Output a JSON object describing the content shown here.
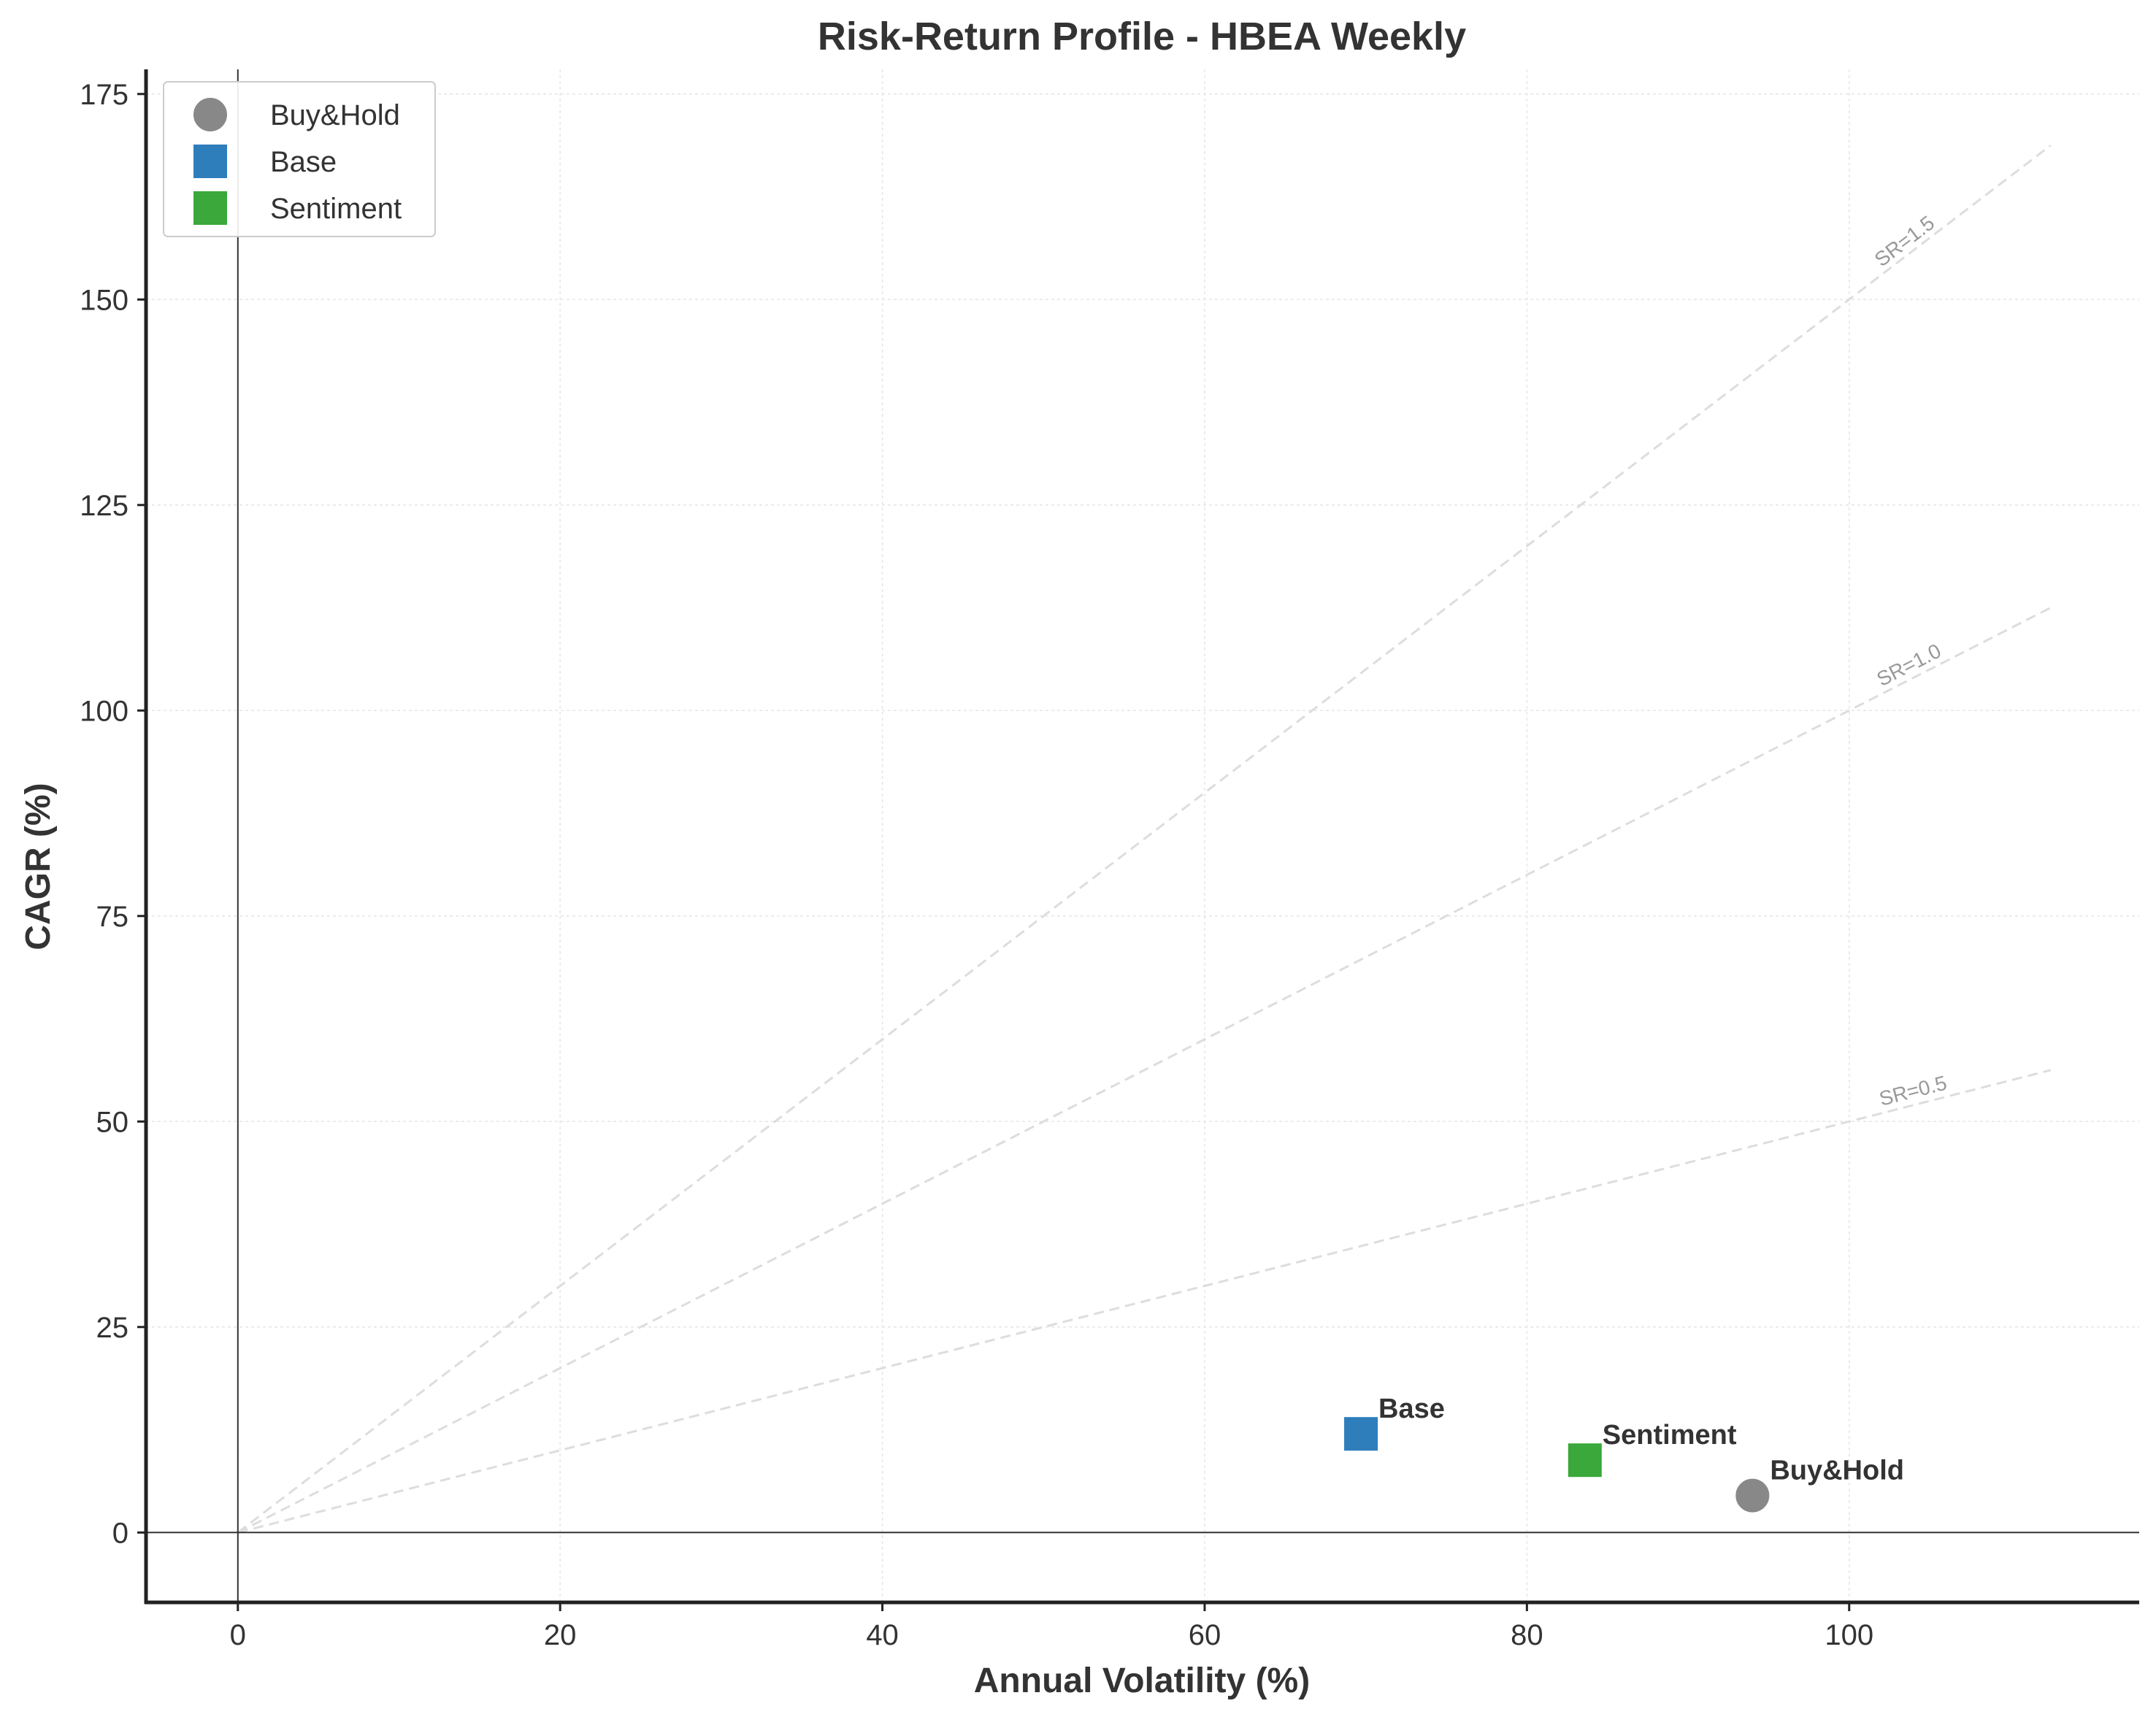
{
  "chart_data": {
    "type": "scatter",
    "title": "Risk-Return Profile - HBEA Weekly",
    "xlabel": "Annual Volatility (%)",
    "ylabel": "CAGR (%)",
    "xlim": [
      -5.7,
      118
    ],
    "ylim": [
      -8.5,
      178
    ],
    "xticks": [
      0,
      20,
      40,
      60,
      80,
      100
    ],
    "yticks": [
      0,
      25,
      50,
      75,
      100,
      125,
      150,
      175
    ],
    "grid": true,
    "legend_position": "upper-left",
    "series": [
      {
        "name": "Buy&Hold",
        "marker": "circle",
        "color": "#888888",
        "x": 94.0,
        "y": 4.5,
        "label": "Buy&Hold"
      },
      {
        "name": "Base",
        "marker": "square",
        "color": "#2e7ebc",
        "x": 69.7,
        "y": 12.0,
        "label": "Base"
      },
      {
        "name": "Sentiment",
        "marker": "square",
        "color": "#3aa83a",
        "x": 83.6,
        "y": 8.8,
        "label": "Sentiment"
      }
    ],
    "reference_lines": [
      {
        "slope": 0.5,
        "label": "SR=0.5",
        "x_end": 112.5
      },
      {
        "slope": 1.0,
        "label": "SR=1.0",
        "x_end": 112.5
      },
      {
        "slope": 1.5,
        "label": "SR=1.5",
        "x_end": 112.5
      }
    ]
  }
}
